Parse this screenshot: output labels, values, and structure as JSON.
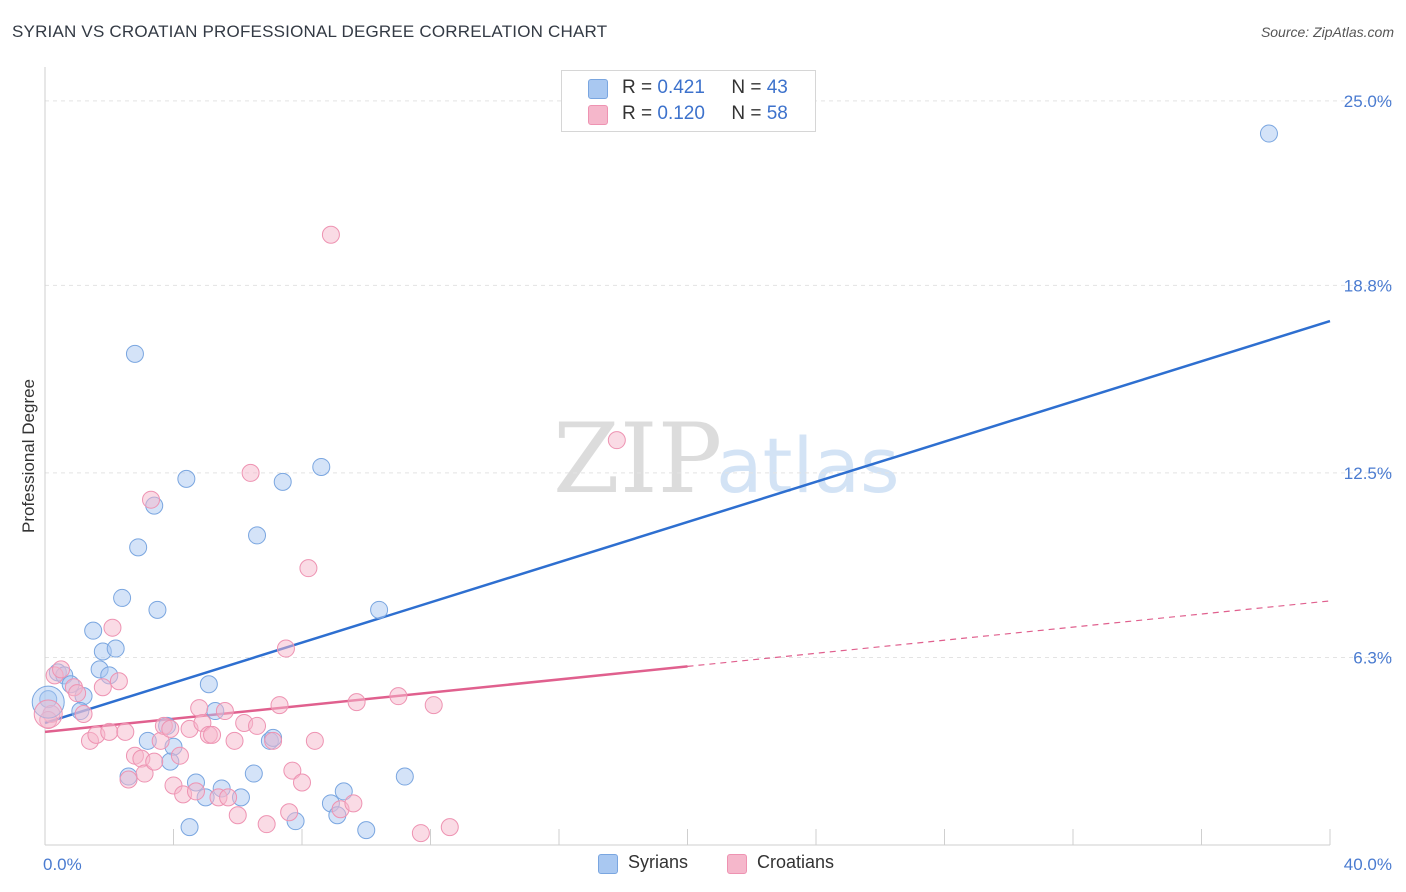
{
  "header": {
    "title": "SYRIAN VS CROATIAN PROFESSIONAL DEGREE CORRELATION CHART",
    "source": "Source: ZipAtlas.com"
  },
  "watermark": {
    "zip": "ZIP",
    "atlas": "atlas"
  },
  "legend": {
    "rows": [
      {
        "r_label": "R = ",
        "r_value": "0.421",
        "n_label": "N = ",
        "n_value": "43",
        "color": "#a9c8f1"
      },
      {
        "r_label": "R = ",
        "r_value": "0.120",
        "n_label": "N = ",
        "n_value": "58",
        "color": "#f5b7cb"
      }
    ]
  },
  "bottom_legend": {
    "syrians": "Syrians",
    "croatians": "Croatians"
  },
  "chart_data": {
    "type": "scatter",
    "title": "SYRIAN VS CROATIAN PROFESSIONAL DEGREE CORRELATION CHART",
    "xlabel": "",
    "ylabel": "Professional Degree",
    "xlim": [
      0,
      40
    ],
    "ylim": [
      0,
      25.8
    ],
    "x_tick_labels": [
      {
        "value": 0,
        "label": "0.0%"
      },
      {
        "value": 40,
        "label": "40.0%"
      }
    ],
    "y_tick_labels": [
      {
        "value": 6.3,
        "label": "6.3%"
      },
      {
        "value": 12.5,
        "label": "12.5%"
      },
      {
        "value": 18.8,
        "label": "18.8%"
      },
      {
        "value": 25.0,
        "label": "25.0%"
      }
    ],
    "series": [
      {
        "name": "Syrians",
        "color": "#a9c8f1",
        "stroke": "#7aa6e0",
        "line_color": "#2e6fd0",
        "trend": {
          "x0": 0,
          "y0": 4.1,
          "x1": 40,
          "y1": 17.6
        },
        "points": [
          [
            0.1,
            4.9
          ],
          [
            0.4,
            5.8
          ],
          [
            0.6,
            5.7
          ],
          [
            0.8,
            5.4
          ],
          [
            1.2,
            5.0
          ],
          [
            1.1,
            4.5
          ],
          [
            1.5,
            7.2
          ],
          [
            1.7,
            5.9
          ],
          [
            2.0,
            5.7
          ],
          [
            1.8,
            6.5
          ],
          [
            2.2,
            6.6
          ],
          [
            2.4,
            8.3
          ],
          [
            2.8,
            16.5
          ],
          [
            2.9,
            10.0
          ],
          [
            3.4,
            11.4
          ],
          [
            3.5,
            7.9
          ],
          [
            3.2,
            3.5
          ],
          [
            3.8,
            4.0
          ],
          [
            4.0,
            3.3
          ],
          [
            3.9,
            2.8
          ],
          [
            4.4,
            12.3
          ],
          [
            4.7,
            2.1
          ],
          [
            5.1,
            5.4
          ],
          [
            5.3,
            4.5
          ],
          [
            5.5,
            1.9
          ],
          [
            5.0,
            1.6
          ],
          [
            6.1,
            1.6
          ],
          [
            6.5,
            2.4
          ],
          [
            6.6,
            10.4
          ],
          [
            7.0,
            3.5
          ],
          [
            7.4,
            12.2
          ],
          [
            7.8,
            0.8
          ],
          [
            8.6,
            12.7
          ],
          [
            8.9,
            1.4
          ],
          [
            9.1,
            1.0
          ],
          [
            9.3,
            1.8
          ],
          [
            10.0,
            0.5
          ],
          [
            10.4,
            7.9
          ],
          [
            11.2,
            2.3
          ],
          [
            4.5,
            0.6
          ],
          [
            2.6,
            2.3
          ],
          [
            7.1,
            3.6
          ],
          [
            38.1,
            23.9
          ]
        ]
      },
      {
        "name": "Croatians",
        "color": "#f5b7cb",
        "stroke": "#ee93b2",
        "line_color": "#e0608e",
        "trend": {
          "x0": 0,
          "y0": 3.8,
          "x1": 20,
          "y1": 6.0
        },
        "trend_dashed_to": {
          "x": 40,
          "y": 8.2
        },
        "points": [
          [
            0.2,
            4.4
          ],
          [
            0.3,
            5.7
          ],
          [
            0.5,
            5.9
          ],
          [
            0.9,
            5.3
          ],
          [
            1.2,
            4.4
          ],
          [
            1.4,
            3.5
          ],
          [
            1.6,
            3.7
          ],
          [
            1.8,
            5.3
          ],
          [
            2.0,
            3.8
          ],
          [
            2.1,
            7.3
          ],
          [
            2.3,
            5.5
          ],
          [
            2.5,
            3.8
          ],
          [
            2.6,
            2.2
          ],
          [
            2.8,
            3.0
          ],
          [
            3.0,
            2.9
          ],
          [
            3.1,
            2.4
          ],
          [
            3.3,
            11.6
          ],
          [
            3.4,
            2.8
          ],
          [
            3.6,
            3.5
          ],
          [
            3.7,
            4.0
          ],
          [
            3.9,
            3.9
          ],
          [
            4.0,
            2.0
          ],
          [
            4.2,
            3.0
          ],
          [
            4.3,
            1.7
          ],
          [
            4.5,
            3.9
          ],
          [
            4.7,
            1.8
          ],
          [
            4.8,
            4.6
          ],
          [
            4.9,
            4.1
          ],
          [
            5.1,
            3.7
          ],
          [
            5.2,
            3.7
          ],
          [
            5.4,
            1.6
          ],
          [
            5.6,
            4.5
          ],
          [
            5.7,
            1.6
          ],
          [
            5.9,
            3.5
          ],
          [
            6.0,
            1.0
          ],
          [
            6.2,
            4.1
          ],
          [
            6.4,
            12.5
          ],
          [
            6.6,
            4.0
          ],
          [
            6.9,
            0.7
          ],
          [
            7.1,
            3.5
          ],
          [
            7.3,
            4.7
          ],
          [
            7.5,
            6.6
          ],
          [
            7.6,
            1.1
          ],
          [
            7.7,
            2.5
          ],
          [
            8.0,
            2.1
          ],
          [
            8.2,
            9.3
          ],
          [
            8.4,
            3.5
          ],
          [
            8.9,
            20.5
          ],
          [
            9.2,
            1.2
          ],
          [
            9.6,
            1.4
          ],
          [
            9.7,
            4.8
          ],
          [
            11.0,
            5.0
          ],
          [
            11.7,
            0.4
          ],
          [
            12.1,
            4.7
          ],
          [
            12.6,
            0.6
          ],
          [
            17.8,
            13.6
          ],
          [
            0.1,
            4.2
          ],
          [
            1.0,
            5.1
          ]
        ]
      }
    ]
  }
}
